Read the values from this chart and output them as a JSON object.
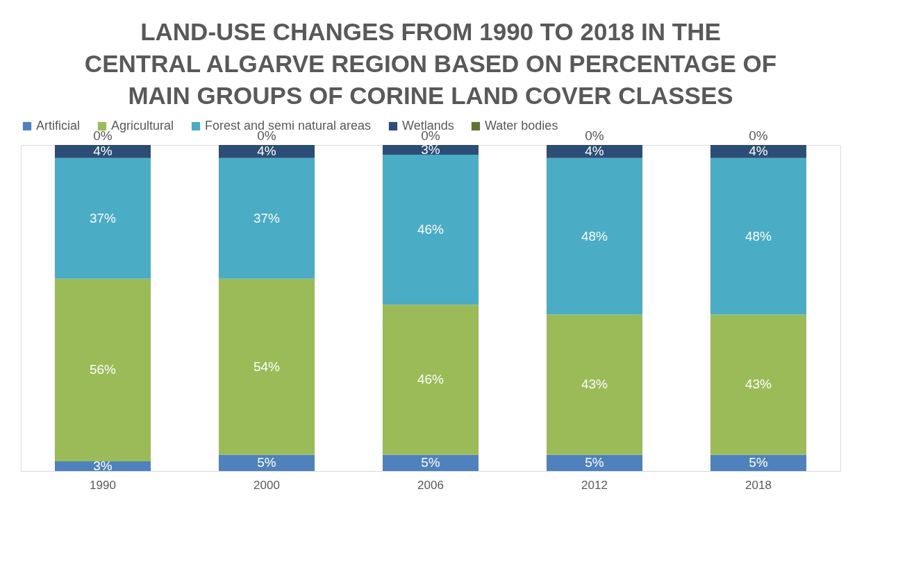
{
  "chart_data": {
    "type": "bar",
    "stacked": true,
    "title": "LAND-USE CHANGES FROM 1990 TO 2018 IN THE CENTRAL ALGARVE REGION BASED ON PERCENTAGE OF MAIN GROUPS OF CORINE LAND COVER CLASSES",
    "categories": [
      "1990",
      "2000",
      "2006",
      "2012",
      "2018"
    ],
    "series": [
      {
        "name": "Artificial",
        "color": "#4f81bd",
        "values": [
          3,
          5,
          5,
          5,
          5
        ],
        "value_labels": [
          "3%",
          "5%",
          "5%",
          "5%",
          "5%"
        ]
      },
      {
        "name": "Agricultural",
        "color": "#9bbb59",
        "values": [
          56,
          54,
          46,
          43,
          43
        ],
        "value_labels": [
          "56%",
          "54%",
          "46%",
          "43%",
          "43%"
        ]
      },
      {
        "name": "Forest and semi natural areas",
        "color": "#4bacc6",
        "values": [
          37,
          37,
          46,
          48,
          48
        ],
        "value_labels": [
          "37%",
          "37%",
          "46%",
          "48%",
          "48%"
        ]
      },
      {
        "name": "Wetlands",
        "color": "#2c4d75",
        "values": [
          4,
          4,
          3,
          4,
          4
        ],
        "value_labels": [
          "4%",
          "4%",
          "3%",
          "4%",
          "4%"
        ]
      },
      {
        "name": "Water bodies",
        "color": "#5f7530",
        "values": [
          0,
          0,
          0,
          0,
          0
        ],
        "value_labels": [
          "0%",
          "0%",
          "0%",
          "0%",
          "0%"
        ]
      }
    ],
    "legend": "top",
    "grid": "x"
  }
}
